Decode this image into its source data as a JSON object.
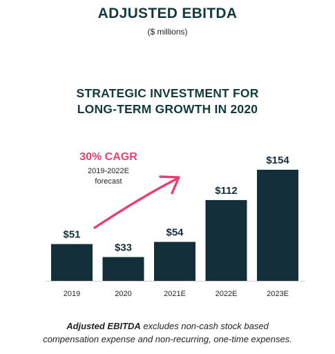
{
  "header": {
    "title": "ADJUSTED EBITDA",
    "subtitle": "($ millions)",
    "heading_line1": "STRATEGIC INVESTMENT FOR",
    "heading_line2": "LONG-TERM GROWTH IN 2020"
  },
  "annotation": {
    "cagr": "30% CAGR",
    "period": "2019-2022E",
    "label": "forecast",
    "color": "#ea3d72"
  },
  "footnote": {
    "bold": "Adjusted EBITDA",
    "rest_line1": " excludes non-cash stock based",
    "line2": "compensation expense and non-recurring, one-time expenses."
  },
  "chart_data": {
    "type": "bar",
    "categories": [
      "2019",
      "2020",
      "2021E",
      "2022E",
      "2023E"
    ],
    "values": [
      51,
      33,
      54,
      112,
      154
    ],
    "data_labels": [
      "$51",
      "$33",
      "$54",
      "$112",
      "$154"
    ],
    "bar_color": "#13303a",
    "grid": false,
    "legend": "none"
  }
}
